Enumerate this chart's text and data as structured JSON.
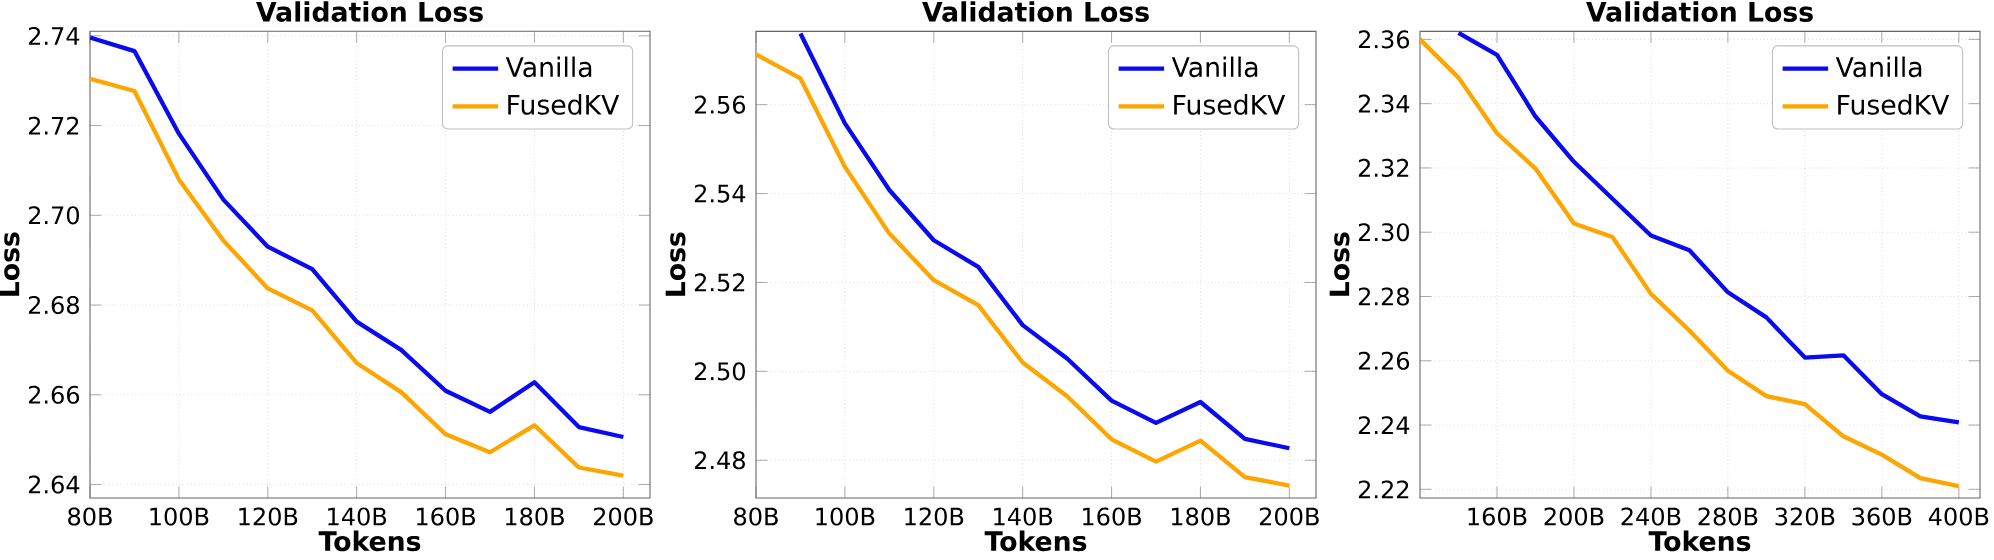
{
  "chart_data": [
    {
      "type": "line",
      "title": "Validation Loss",
      "xlabel": "Tokens",
      "ylabel": "Loss",
      "grid": true,
      "legend": "top right",
      "x": [
        80,
        90,
        100,
        110,
        120,
        130,
        140,
        150,
        160,
        170,
        180,
        190,
        200
      ],
      "xlim": [
        80,
        206
      ],
      "ylim": [
        2.637,
        2.741
      ],
      "xticks": [
        {
          "value": 80,
          "label": "80B"
        },
        {
          "value": 100,
          "label": "100B"
        },
        {
          "value": 120,
          "label": "120B"
        },
        {
          "value": 140,
          "label": "140B"
        },
        {
          "value": 160,
          "label": "160B"
        },
        {
          "value": 180,
          "label": "180B"
        },
        {
          "value": 200,
          "label": "200B"
        }
      ],
      "yticks": [
        {
          "value": 2.64,
          "label": "2.64"
        },
        {
          "value": 2.66,
          "label": "2.66"
        },
        {
          "value": 2.68,
          "label": "2.68"
        },
        {
          "value": 2.7,
          "label": "2.70"
        },
        {
          "value": 2.72,
          "label": "2.72"
        },
        {
          "value": 2.74,
          "label": "2.74"
        }
      ],
      "series": [
        {
          "name": "Vanilla",
          "color": "#0a0af0",
          "values": [
            2.7396,
            2.7366,
            2.7182,
            2.7035,
            2.693,
            2.688,
            2.6763,
            2.67,
            2.6609,
            2.6562,
            2.6628,
            2.6528,
            2.6506
          ]
        },
        {
          "name": "FusedKV",
          "color": "#ffa500",
          "values": [
            2.7304,
            2.7277,
            2.708,
            2.6944,
            2.6837,
            2.6788,
            2.6671,
            2.6606,
            2.6512,
            2.6472,
            2.6532,
            2.6438,
            2.642
          ]
        }
      ]
    },
    {
      "type": "line",
      "title": "Validation Loss",
      "xlabel": "Tokens",
      "ylabel": "Loss",
      "grid": true,
      "legend": "top right",
      "x": [
        80,
        90,
        100,
        110,
        120,
        130,
        140,
        150,
        160,
        170,
        180,
        190,
        200
      ],
      "xlim": [
        80,
        206
      ],
      "ylim": [
        2.4715,
        2.5765
      ],
      "xticks": [
        {
          "value": 80,
          "label": "80B"
        },
        {
          "value": 100,
          "label": "100B"
        },
        {
          "value": 120,
          "label": "120B"
        },
        {
          "value": 140,
          "label": "140B"
        },
        {
          "value": 160,
          "label": "160B"
        },
        {
          "value": 180,
          "label": "180B"
        },
        {
          "value": 200,
          "label": "200B"
        }
      ],
      "yticks": [
        {
          "value": 2.48,
          "label": "2.48"
        },
        {
          "value": 2.5,
          "label": "2.50"
        },
        {
          "value": 2.52,
          "label": "2.52"
        },
        {
          "value": 2.54,
          "label": "2.54"
        },
        {
          "value": 2.56,
          "label": "2.56"
        }
      ],
      "series": [
        {
          "name": "Vanilla",
          "color": "#0a0af0",
          "values": [
            null,
            2.576,
            2.5558,
            2.5408,
            2.5295,
            2.5235,
            2.5104,
            2.5029,
            2.4934,
            2.4884,
            2.4931,
            2.4848,
            2.4827
          ]
        },
        {
          "name": "FusedKV",
          "color": "#ffa500",
          "values": [
            2.5713,
            2.5659,
            2.546,
            2.531,
            2.5205,
            2.5149,
            2.502,
            2.4944,
            2.4847,
            2.4797,
            2.4844,
            2.4762,
            2.4743
          ]
        }
      ]
    },
    {
      "type": "line",
      "title": "Validation Loss",
      "xlabel": "Tokens",
      "ylabel": "Loss",
      "grid": true,
      "legend": "top right",
      "x": [
        120,
        140,
        160,
        180,
        200,
        220,
        240,
        260,
        280,
        300,
        320,
        340,
        360,
        380,
        400
      ],
      "xlim": [
        120,
        411
      ],
      "ylim": [
        2.2173,
        2.3625
      ],
      "xticks": [
        {
          "value": 160,
          "label": "160B"
        },
        {
          "value": 200,
          "label": "200B"
        },
        {
          "value": 240,
          "label": "240B"
        },
        {
          "value": 280,
          "label": "280B"
        },
        {
          "value": 320,
          "label": "320B"
        },
        {
          "value": 360,
          "label": "360B"
        },
        {
          "value": 400,
          "label": "400B"
        }
      ],
      "yticks": [
        {
          "value": 2.22,
          "label": "2.22"
        },
        {
          "value": 2.24,
          "label": "2.24"
        },
        {
          "value": 2.26,
          "label": "2.26"
        },
        {
          "value": 2.28,
          "label": "2.28"
        },
        {
          "value": 2.3,
          "label": "2.30"
        },
        {
          "value": 2.32,
          "label": "2.32"
        },
        {
          "value": 2.34,
          "label": "2.34"
        },
        {
          "value": 2.36,
          "label": "2.36"
        }
      ],
      "series": [
        {
          "name": "Vanilla",
          "color": "#0a0af0",
          "values": [
            null,
            2.362,
            2.3552,
            2.336,
            2.3219,
            2.3104,
            2.299,
            2.2944,
            2.2813,
            2.2735,
            2.261,
            2.2617,
            2.2496,
            2.2427,
            2.2408
          ]
        },
        {
          "name": "FusedKV",
          "color": "#ffa500",
          "values": [
            2.36,
            2.3481,
            2.3308,
            2.3198,
            2.3027,
            2.2985,
            2.2808,
            2.2694,
            2.2569,
            2.249,
            2.2465,
            2.2365,
            2.2308,
            2.2235,
            2.221
          ]
        }
      ]
    }
  ]
}
